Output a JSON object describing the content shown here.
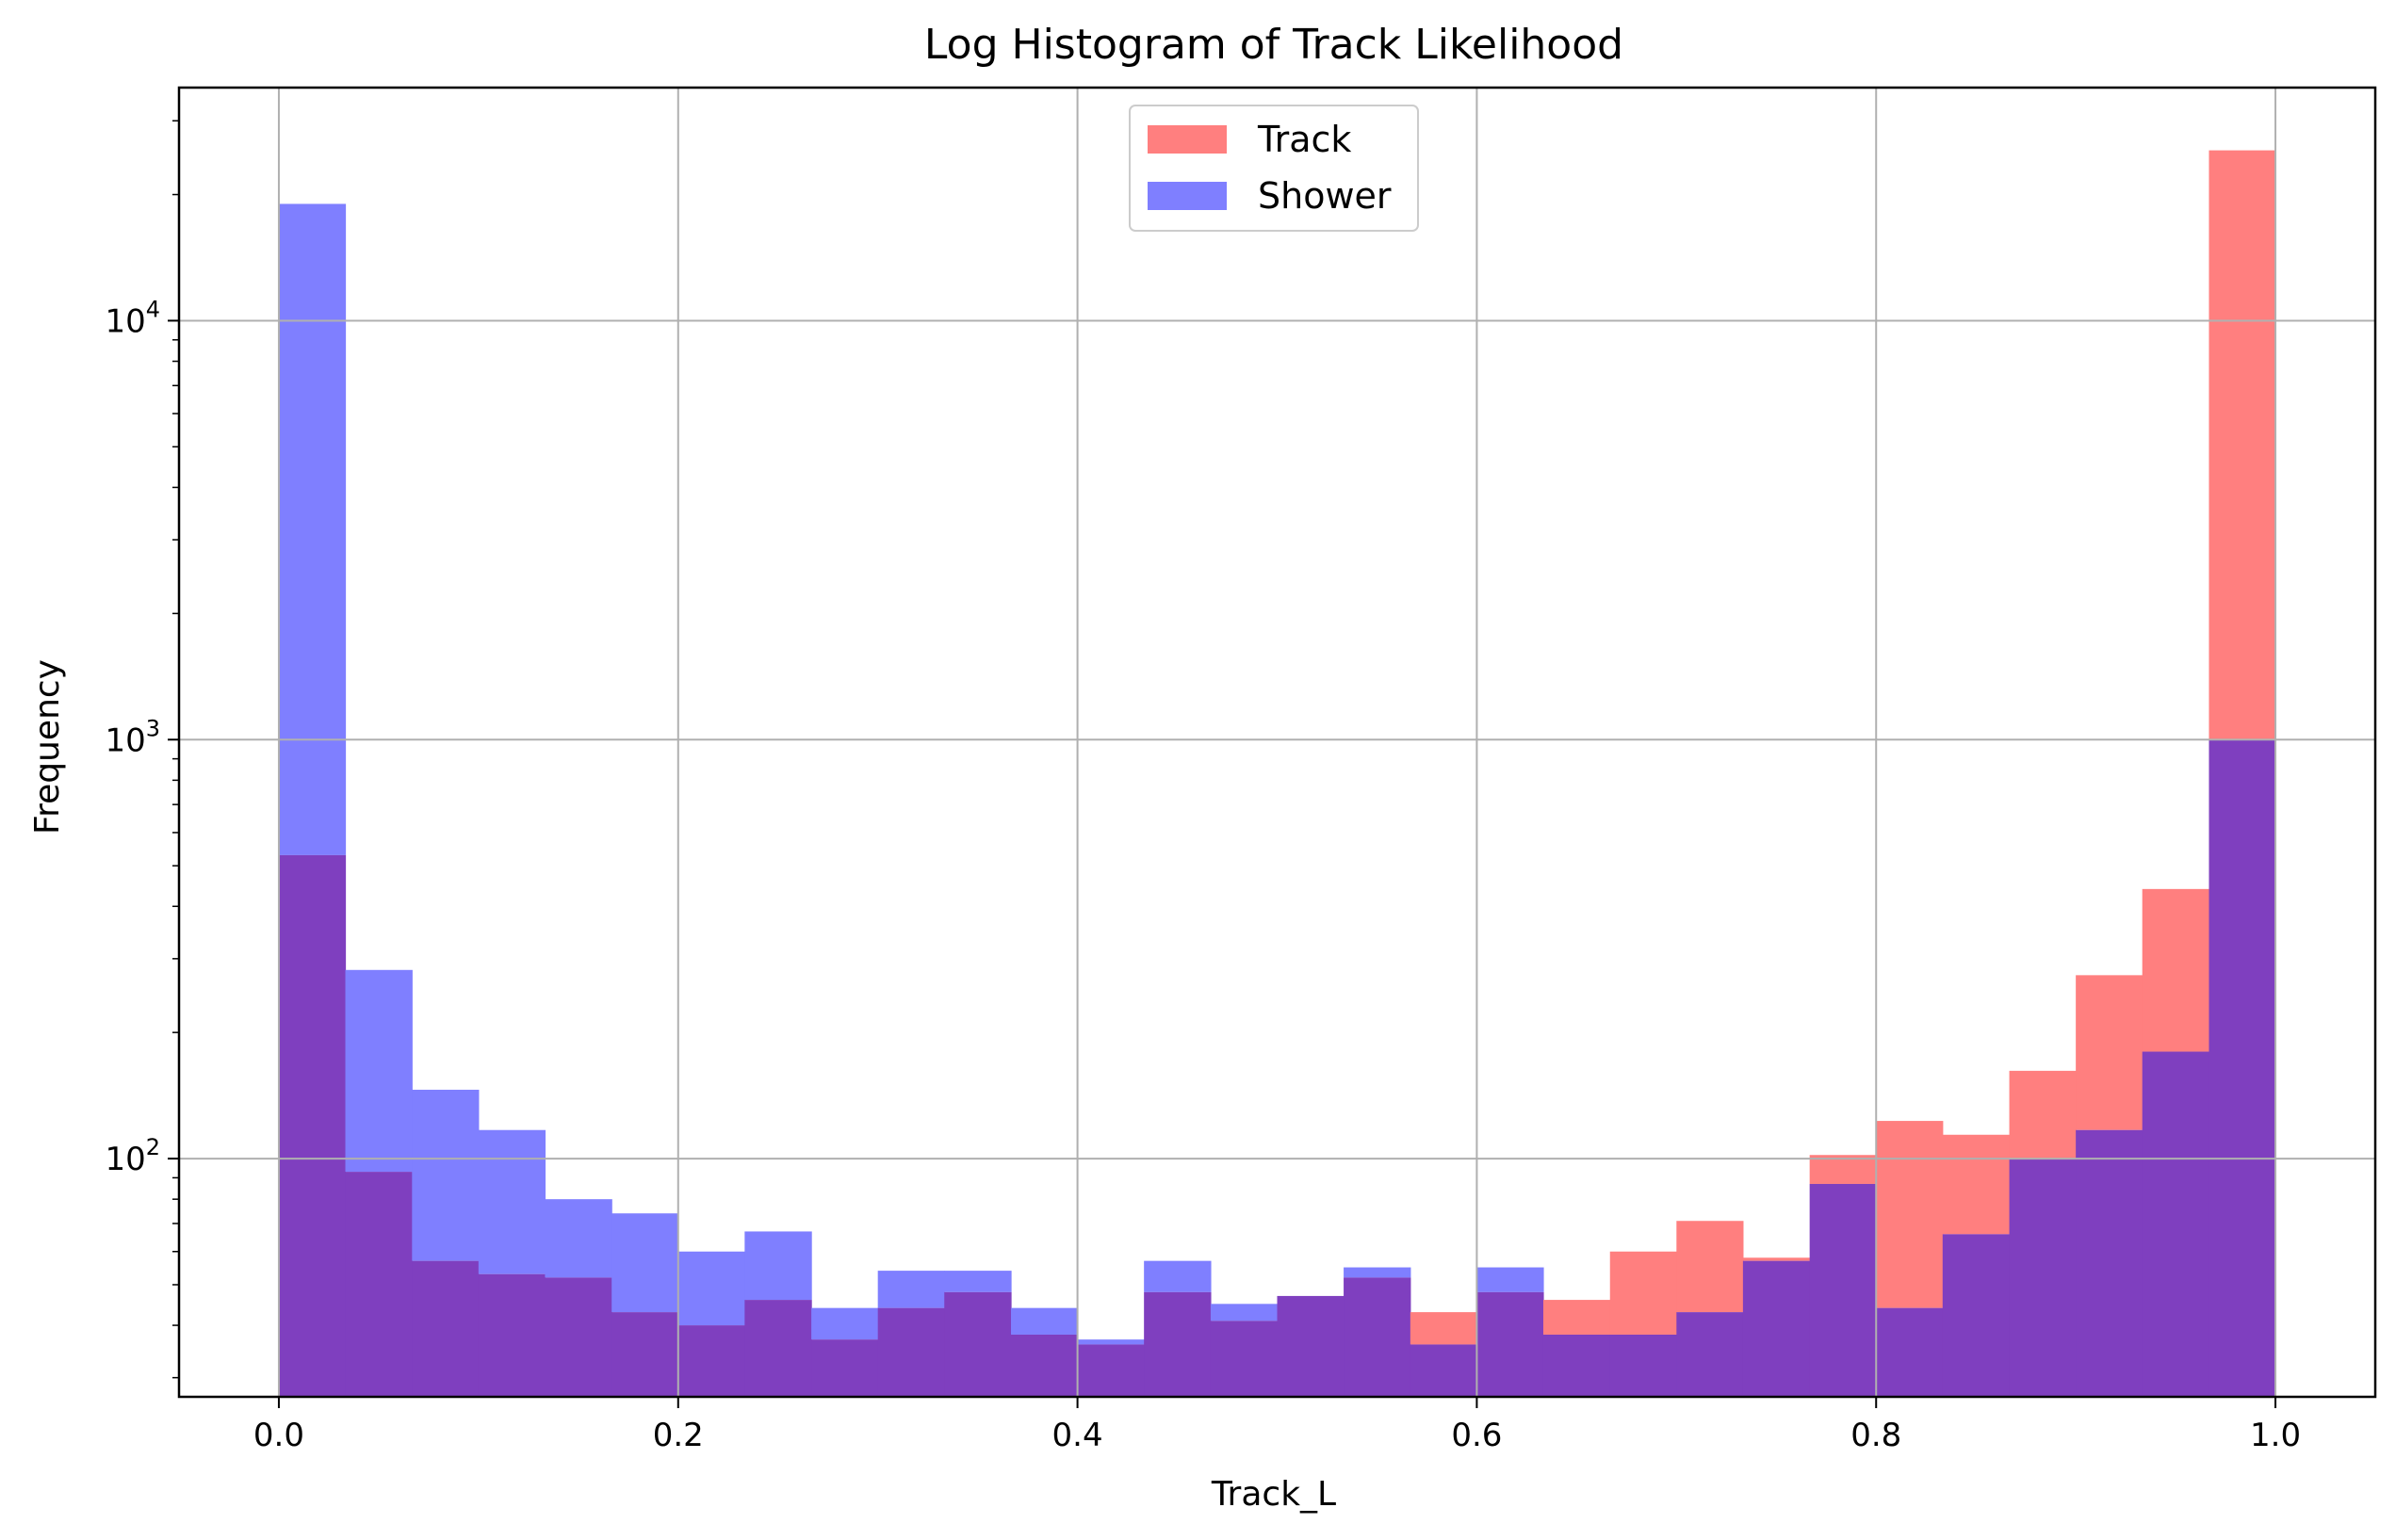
{
  "chart_data": {
    "type": "bar",
    "title": "Log Histogram of Track Likelihood",
    "xlabel": "Track_L",
    "ylabel": "Frequency",
    "x_range": [
      -0.05,
      1.05
    ],
    "y_scale": "log",
    "y_range": [
      27,
      36000
    ],
    "grid": true,
    "legend_position": "upper center",
    "x_ticks": [
      0.0,
      0.2,
      0.4,
      0.6,
      0.8,
      1.0
    ],
    "x_tick_labels": [
      "0.0",
      "0.2",
      "0.4",
      "0.6",
      "0.8",
      "1.0"
    ],
    "y_ticks": [
      100,
      1000,
      10000
    ],
    "y_tick_labels": [
      {
        "base": "10",
        "exp": "2"
      },
      {
        "base": "10",
        "exp": "3"
      },
      {
        "base": "10",
        "exp": "4"
      }
    ],
    "bin_edges": [
      0.0,
      0.0333,
      0.0667,
      0.1,
      0.1333,
      0.1667,
      0.2,
      0.2333,
      0.2667,
      0.3,
      0.3333,
      0.3667,
      0.4,
      0.4333,
      0.4667,
      0.5,
      0.5333,
      0.5667,
      0.6,
      0.6333,
      0.6667,
      0.7,
      0.7333,
      0.7667,
      0.8,
      0.8333,
      0.8667,
      0.9,
      0.9333,
      0.9667,
      1.0
    ],
    "series": [
      {
        "name": "Track",
        "color": "#ff7f7f",
        "values": [
          530,
          93,
          57,
          53,
          52,
          43,
          40,
          46,
          37,
          44,
          48,
          38,
          36,
          48,
          41,
          47,
          52,
          43,
          48,
          46,
          60,
          71,
          58,
          102,
          123,
          114,
          162,
          274,
          440,
          25500
        ]
      },
      {
        "name": "Shower",
        "color": "#7f7fff",
        "values": [
          19000,
          282,
          146,
          117,
          80,
          74,
          60,
          67,
          44,
          54,
          54,
          44,
          37,
          57,
          45,
          47,
          55,
          36,
          55,
          38,
          38,
          43,
          57,
          87,
          44,
          66,
          100,
          117,
          180,
          1000
        ]
      }
    ],
    "overlap_color": "#7f3fbf"
  }
}
